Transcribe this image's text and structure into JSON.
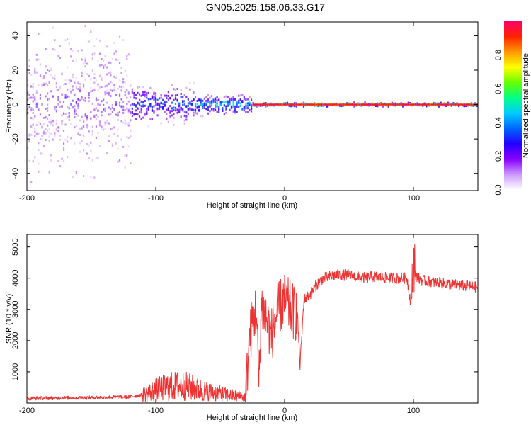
{
  "title": "GN05.2025.158.06.33.G17",
  "colors": {
    "snr_line": "#ee3333",
    "background": "#ffffff",
    "axes": "#000000"
  },
  "chart_data": [
    {
      "type": "heatmap",
      "xlabel": "Height of straight line (km)",
      "ylabel": "Frequency (Hz)",
      "xlim": [
        -200,
        150
      ],
      "ylim": [
        -50,
        48
      ],
      "xticks": [
        "-200",
        "-100",
        "0",
        "100"
      ],
      "yticks": [
        "-40",
        "-20",
        "0",
        "20",
        "40"
      ],
      "colorbar": {
        "label": "Normalized spectral amplitude",
        "range": [
          0,
          1
        ],
        "ticks": [
          "0.0",
          "0.2",
          "0.4",
          "0.6",
          "0.8"
        ],
        "colormap": [
          "#ffffff",
          "#cc99ff",
          "#8800ff",
          "#2200ff",
          "#0066ff",
          "#00ccff",
          "#00ff88",
          "#66ff00",
          "#ffff00",
          "#ff9900",
          "#ff2200",
          "#ff0066"
        ]
      },
      "band_center_hz": 0,
      "noisy_region_km": [
        -200,
        -120
      ],
      "clean_region_km": [
        -25,
        150
      ]
    },
    {
      "type": "line",
      "xlabel": "Height of straight line (km)",
      "ylabel": "SNR (10 * v/v)",
      "xlim": [
        -200,
        150
      ],
      "ylim": [
        0,
        5400
      ],
      "xticks": [
        "-200",
        "-100",
        "0",
        "100"
      ],
      "yticks": [
        "1000",
        "2000",
        "3000",
        "4000",
        "5000"
      ],
      "series": [
        {
          "x": [
            -200,
            -180,
            -160,
            -140,
            -120,
            -110,
            -100,
            -90,
            -80,
            -70,
            -60,
            -50,
            -40,
            -30,
            -28,
            -25,
            -22,
            -20,
            -18,
            -16,
            -14,
            -12,
            -10,
            -5,
            0,
            5,
            10,
            12,
            15,
            20,
            25,
            30,
            35,
            40,
            50,
            60,
            70,
            80,
            90,
            95,
            98,
            100,
            102,
            105,
            110,
            120,
            130,
            140,
            150
          ],
          "y": [
            150,
            160,
            170,
            180,
            200,
            260,
            420,
            520,
            560,
            470,
            360,
            300,
            230,
            200,
            1800,
            2600,
            3000,
            600,
            3100,
            2900,
            2700,
            2400,
            2200,
            3000,
            3300,
            3000,
            2800,
            1200,
            3300,
            3500,
            3800,
            4000,
            4050,
            4100,
            4100,
            4000,
            4050,
            4000,
            4000,
            4000,
            3200,
            4000,
            4100,
            3950,
            3900,
            3850,
            3800,
            3750,
            3700
          ]
        }
      ]
    }
  ]
}
